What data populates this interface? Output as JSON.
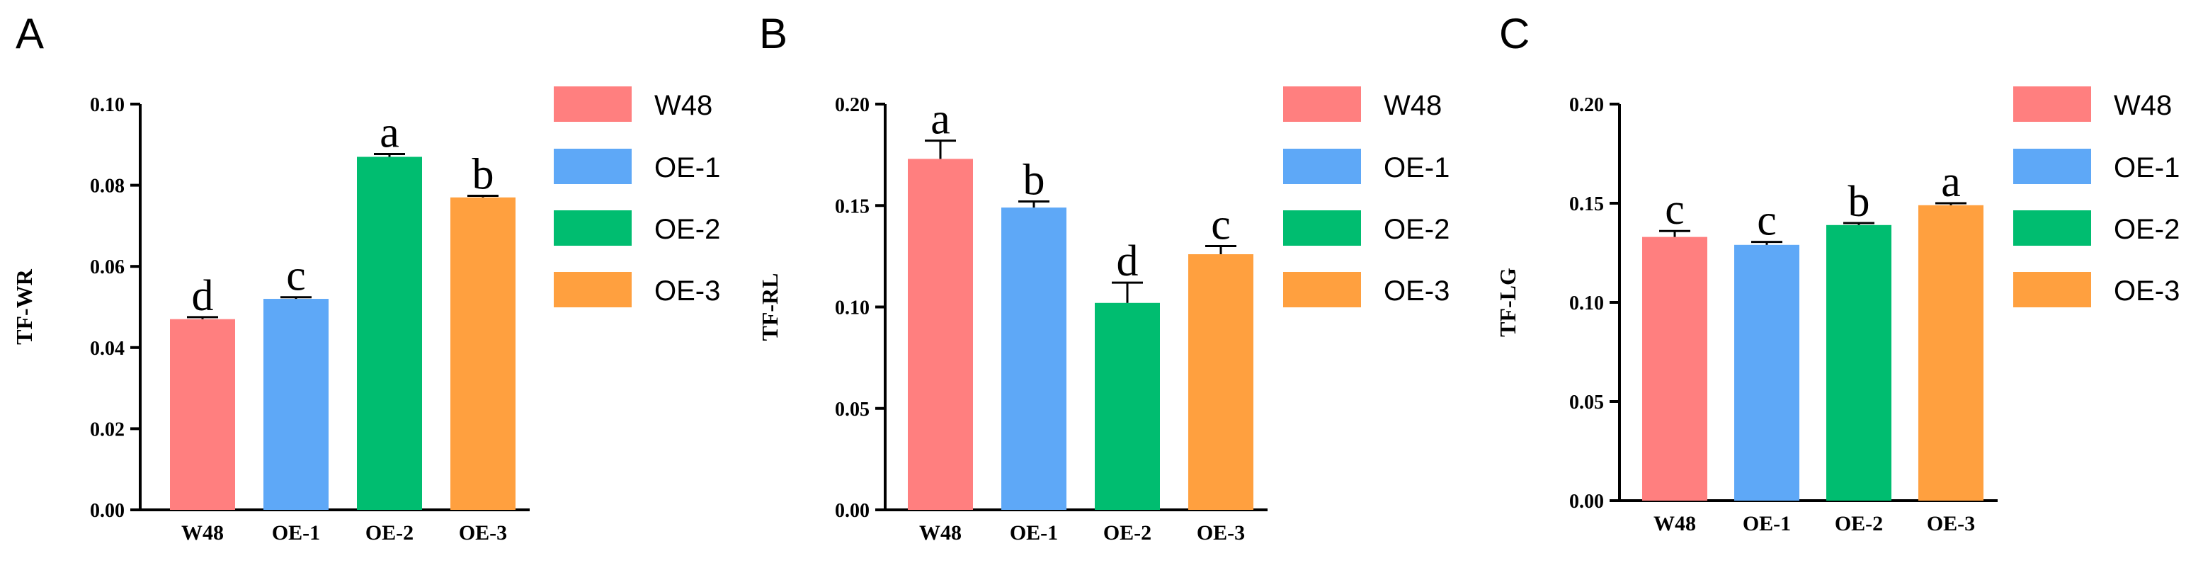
{
  "chart_data": [
    {
      "type": "bar",
      "panel": "A",
      "title": "",
      "xlabel": "",
      "ylabel": "TF-WR",
      "ylim": [
        0,
        0.1
      ],
      "yticks": [
        "0.00",
        "0.02",
        "0.04",
        "0.06",
        "0.08",
        "0.10"
      ],
      "categories": [
        "W48",
        "OE-1",
        "OE-2",
        "OE-3"
      ],
      "values": [
        0.047,
        0.052,
        0.087,
        0.077
      ],
      "errors": [
        0.0005,
        0.0004,
        0.0007,
        0.0004
      ],
      "significance": [
        "d",
        "c",
        "a",
        "b"
      ],
      "colors": [
        "#FF7F7F",
        "#5EA8F7",
        "#00BD70",
        "#FFA03F"
      ],
      "legend": [
        "W48",
        "OE-1",
        "OE-2",
        "OE-3"
      ],
      "legend_position": "right",
      "grid": false
    },
    {
      "type": "bar",
      "panel": "B",
      "title": "",
      "xlabel": "",
      "ylabel": "TF-RL",
      "ylim": [
        0,
        0.2
      ],
      "yticks": [
        "0.00",
        "0.05",
        "0.10",
        "0.15",
        "0.20"
      ],
      "categories": [
        "W48",
        "OE-1",
        "OE-2",
        "OE-3"
      ],
      "values": [
        0.173,
        0.149,
        0.102,
        0.126
      ],
      "errors": [
        0.009,
        0.003,
        0.01,
        0.004
      ],
      "significance": [
        "a",
        "b",
        "d",
        "c"
      ],
      "colors": [
        "#FF7F7F",
        "#5EA8F7",
        "#00BD70",
        "#FFA03F"
      ],
      "legend": [
        "W48",
        "OE-1",
        "OE-2",
        "OE-3"
      ],
      "legend_position": "right",
      "grid": false
    },
    {
      "type": "bar",
      "panel": "C",
      "title": "",
      "xlabel": "",
      "ylabel": "TF-LG",
      "ylim": [
        0,
        0.2
      ],
      "yticks": [
        "0.00",
        "0.05",
        "0.10",
        "0.15",
        "0.20"
      ],
      "categories": [
        "W48",
        "OE-1",
        "OE-2",
        "OE-3"
      ],
      "values": [
        0.133,
        0.129,
        0.139,
        0.149
      ],
      "errors": [
        0.003,
        0.0015,
        0.001,
        0.001
      ],
      "significance": [
        "c",
        "c",
        "b",
        "a"
      ],
      "colors": [
        "#FF7F7F",
        "#5EA8F7",
        "#00BD70",
        "#FFA03F"
      ],
      "legend": [
        "W48",
        "OE-1",
        "OE-2",
        "OE-3"
      ],
      "legend_position": "right",
      "grid": false
    }
  ]
}
